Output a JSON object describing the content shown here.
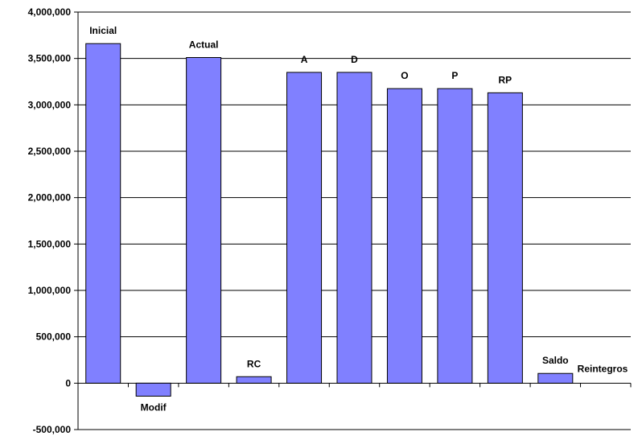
{
  "chart_data": {
    "type": "bar",
    "title": "",
    "xlabel": "",
    "ylabel": "",
    "ylim": [
      -500000,
      4000000
    ],
    "y_ticks": [
      {
        "value": 4000000,
        "label": "4,000,000"
      },
      {
        "value": 3500000,
        "label": "3,500,000"
      },
      {
        "value": 3000000,
        "label": "3,000,000"
      },
      {
        "value": 2500000,
        "label": "2,500,000"
      },
      {
        "value": 2000000,
        "label": "2,000,000"
      },
      {
        "value": 1500000,
        "label": "1,500,000"
      },
      {
        "value": 1000000,
        "label": "1,000,000"
      },
      {
        "value": 500000,
        "label": "500,000"
      },
      {
        "value": 0,
        "label": "0"
      },
      {
        "value": -500000,
        "label": "-500,000"
      }
    ],
    "grid": true,
    "legend": "none",
    "bar_color": "#8080ff",
    "bar_border_color": "#000000",
    "categories": [
      "Inicial",
      "Modif",
      "Actual",
      "RC",
      "A",
      "D",
      "O",
      "P",
      "RP",
      "Saldo",
      "Reintegros"
    ],
    "values": [
      3660000,
      -140000,
      3510000,
      70000,
      3350000,
      3350000,
      3175000,
      3175000,
      3130000,
      105000,
      0
    ]
  }
}
